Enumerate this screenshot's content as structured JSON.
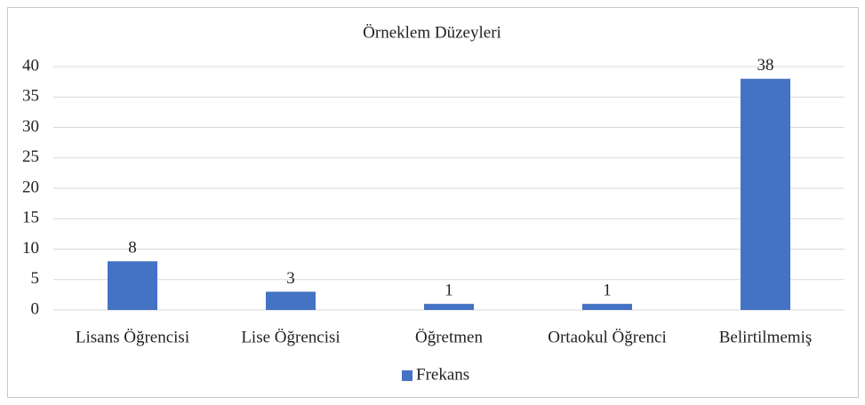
{
  "chart_data": {
    "type": "bar",
    "title": "Örneklem Düzeyleri",
    "categories": [
      "Lisans Öğrencisi",
      "Lise Öğrencisi",
      "Öğretmen",
      "Ortaokul Öğrenci",
      "Belirtilmemiş"
    ],
    "series": [
      {
        "name": "Frekans",
        "color": "#4472c4",
        "values": [
          8,
          3,
          1,
          1,
          38
        ]
      }
    ],
    "ylim": [
      0,
      40
    ],
    "yticks": [
      0,
      5,
      10,
      15,
      20,
      25,
      30,
      35,
      40
    ],
    "grid": true,
    "legend": "bottom",
    "data_labels": true
  }
}
